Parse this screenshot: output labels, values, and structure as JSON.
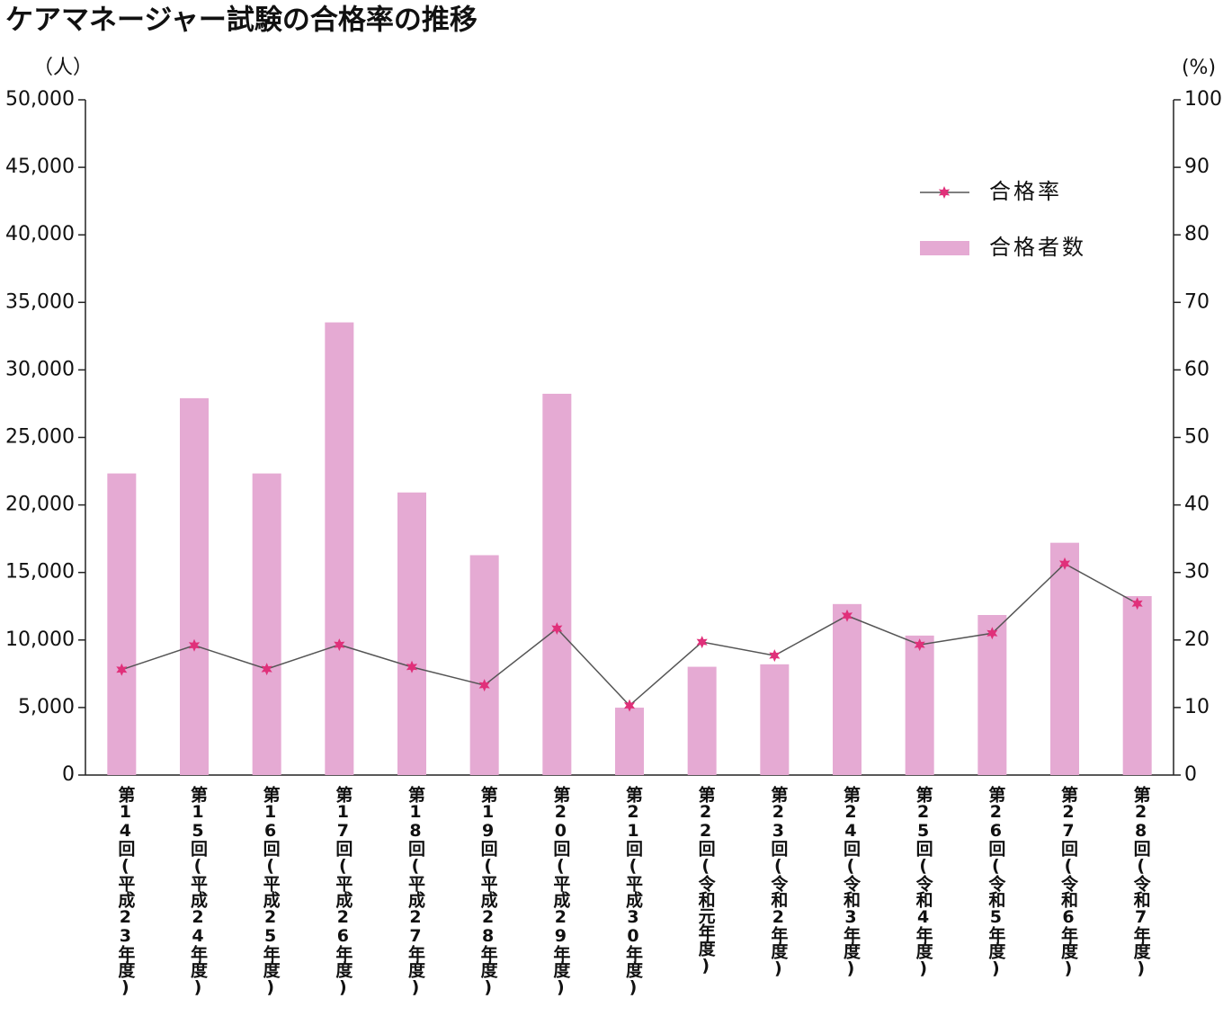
{
  "chart_data": {
    "type": "combo",
    "title": "ケアマネージャー試験の合格率の推移",
    "y_label": "（人）",
    "y2_label": "(%)",
    "categories": [
      "第14回(平成23年度)",
      "第15回(平成24年度)",
      "第16回(平成25年度)",
      "第17回(平成26年度)",
      "第18回(平成27年度)",
      "第19回(平成28年度)",
      "第20回(平成29年度)",
      "第21回(平成30年度)",
      "第22回(令和元年度)",
      "第23回(令和2年度)",
      "第24回(令和3年度)",
      "第25回(令和4年度)",
      "第26回(令和5年度)",
      "第27回(令和6年度)",
      "第28回(令和7年度)"
    ],
    "series": [
      {
        "name": "合格率",
        "type": "line",
        "color": "#555555",
        "marker_color": "#e0307a",
        "axis": "y2",
        "values": [
          15.6,
          19.2,
          15.7,
          19.3,
          16.0,
          13.3,
          21.7,
          10.3,
          19.7,
          17.7,
          23.6,
          19.3,
          21.0,
          31.3,
          25.4
        ]
      },
      {
        "name": "合格者数",
        "type": "bar",
        "color": "#e5aad3",
        "axis": "y",
        "values": [
          22332,
          27905,
          22331,
          33517,
          20924,
          16280,
          28233,
          4990,
          8018,
          8200,
          12662,
          10328,
          11850,
          17200,
          13250
        ]
      }
    ],
    "ylim": [
      0,
      50000
    ],
    "yticks": [
      0,
      {
        "value": 5000,
        "label": "5,000"
      },
      {
        "value": 10000,
        "label": "10,000"
      },
      {
        "value": 15000,
        "label": "15,000"
      },
      {
        "value": 20000,
        "label": "20,000"
      },
      {
        "value": 25000,
        "label": "25,000"
      },
      {
        "value": 30000,
        "label": "30,000"
      },
      {
        "value": 35000,
        "label": "35,000"
      },
      {
        "value": 40000,
        "label": "40,000"
      },
      {
        "value": 45000,
        "label": "45,000"
      },
      {
        "value": 50000,
        "label": "50,000"
      }
    ],
    "y2lim": [
      0,
      100
    ],
    "y2ticks": [
      0,
      10,
      20,
      30,
      40,
      50,
      60,
      70,
      80,
      90,
      100
    ],
    "legend": "upper right"
  }
}
